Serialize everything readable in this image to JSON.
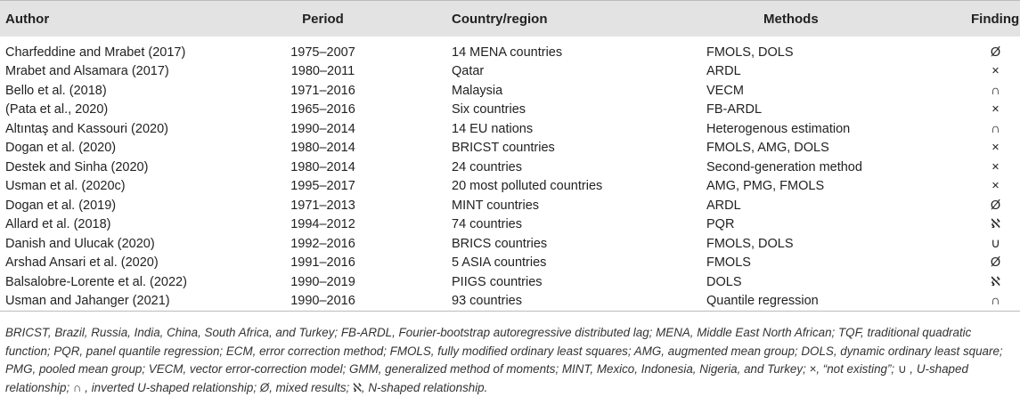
{
  "table": {
    "headers": [
      "Author",
      "Period",
      "Country/region",
      "Methods",
      "Finding"
    ],
    "rows": [
      [
        "Charfeddine and Mrabet (2017)",
        "1975–2007",
        "14 MENA countries",
        "FMOLS, DOLS",
        "Ø"
      ],
      [
        "Mrabet and Alsamara (2017)",
        "1980–2011",
        "Qatar",
        "ARDL",
        "×"
      ],
      [
        "Bello et al. (2018)",
        "1971–2016",
        "Malaysia",
        "VECM",
        "∩"
      ],
      [
        "(Pata et al., 2020)",
        "1965–2016",
        "Six countries",
        "FB-ARDL",
        "×"
      ],
      [
        "Altıntaş and Kassouri (2020)",
        "1990–2014",
        "14 EU nations",
        "Heterogenous estimation",
        "∩"
      ],
      [
        "Dogan et al. (2020)",
        "1980–2014",
        "BRICST countries",
        "FMOLS, AMG, DOLS",
        "×"
      ],
      [
        "Destek and Sinha (2020)",
        "1980–2014",
        "24 countries",
        "Second-generation method",
        "×"
      ],
      [
        "Usman et al. (2020c)",
        "1995–2017",
        "20 most polluted countries",
        "AMG, PMG, FMOLS",
        "×"
      ],
      [
        "Dogan et al. (2019)",
        "1971–2013",
        "MINT countries",
        "ARDL",
        "Ø"
      ],
      [
        "Allard et al. (2018)",
        "1994–2012",
        "74 countries",
        "PQR",
        "ℵ"
      ],
      [
        "Danish and Ulucak (2020)",
        "1992–2016",
        "BRICS countries",
        "FMOLS, DOLS",
        "∪"
      ],
      [
        "Arshad Ansari et al. (2020)",
        "1991–2016",
        "5 ASIA countries",
        "FMOLS",
        "Ø"
      ],
      [
        "Balsalobre-Lorente et al. (2022)",
        "1990–2019",
        "PIIGS countries",
        "DOLS",
        "ℵ"
      ],
      [
        "Usman and Jahanger (2021)",
        "1990–2016",
        "93 countries",
        "Quantile regression",
        "∩"
      ]
    ]
  },
  "footnote": "BRICST, Brazil, Russia, India, China, South Africa, and Turkey; FB-ARDL, Fourier-bootstrap autoregressive distributed lag; MENA, Middle East North African; TQF, traditional quadratic function; PQR, panel quantile regression; ECM, error correction method; FMOLS, fully modified ordinary least squares; AMG, augmented mean group; DOLS, dynamic ordinary least square; PMG, pooled mean group; VECM, vector error-correction model; GMM, generalized method of moments; MINT, Mexico, Indonesia, Nigeria, and Turkey; ×, “not existing”; ∪ , U-shaped relationship; ∩ , inverted U-shaped relationship; Ø, mixed results; ℵ, N-shaped relationship."
}
